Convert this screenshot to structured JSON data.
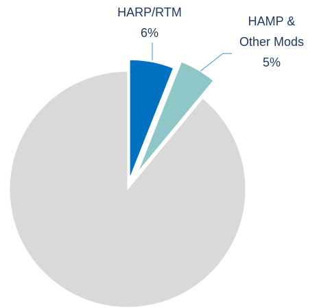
{
  "chart_data": {
    "type": "pie",
    "categories": [
      "HARP/RTM",
      "HAMP & Other Mods",
      null
    ],
    "values": [
      6,
      5,
      89
    ],
    "value_labels": [
      "6%",
      "5%",
      null
    ],
    "colors": [
      "#0070c0",
      "#8fc7c8",
      "#d9d9d9"
    ]
  }
}
